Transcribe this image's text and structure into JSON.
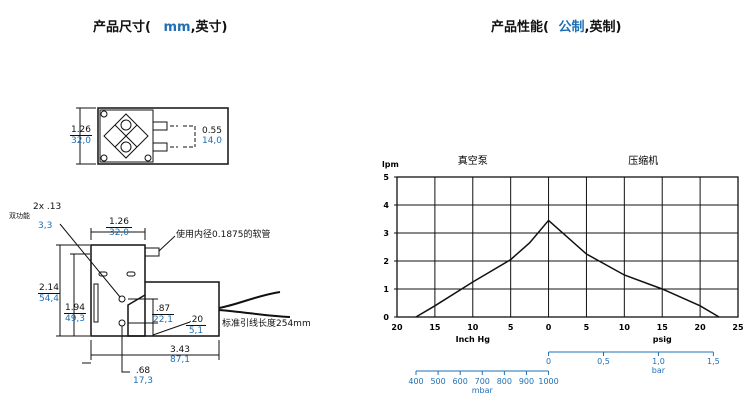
{
  "dimensions": {
    "title_prefix": "产品尺寸(",
    "title_mm": "mm",
    "title_suffix": ",英寸)",
    "top_view": {
      "height": {
        "in": "1.26",
        "mm": "32,0"
      },
      "port_spacing": {
        "in": "0.55",
        "mm": "14,0"
      }
    },
    "front_view": {
      "mount_label": "双功能",
      "holes": {
        "in": "2x .13",
        "mm": "3,3"
      },
      "width_top": {
        "in": "1.26",
        "mm": "32,0"
      },
      "tubing_note": "使用内径0.1875的软管",
      "height_total": {
        "in": "2.14",
        "mm": "54,4"
      },
      "height_body": {
        "in": "1.94",
        "mm": "49,3"
      },
      "hole_spacing": {
        "in": ".87",
        "mm": "22,1"
      },
      "hole_offset": {
        "in": ".20",
        "mm": "5,1"
      },
      "lead_note": "标准引线长度254mm",
      "length": {
        "in": "3.43",
        "mm": "87,1"
      },
      "hole_x": {
        "in": ".68",
        "mm": "17,3"
      }
    }
  },
  "performance": {
    "title_prefix": "产品性能(",
    "title_metric": "公制",
    "title_suffix": ",英制)"
  },
  "chart_data": {
    "type": "line",
    "ylabel": "lpm",
    "region_labels": [
      "真空泵",
      "压缩机"
    ],
    "xlabel_left": "Inch Hg",
    "xlabel_right": "psig",
    "x_ticks": [
      -20,
      -15,
      -10,
      -5,
      0,
      5,
      10,
      15,
      20,
      25
    ],
    "x_tick_labels": [
      "20",
      "15",
      "10",
      "5",
      "0",
      "5",
      "10",
      "15",
      "20",
      "25"
    ],
    "y_ticks": [
      0,
      1,
      2,
      3,
      4,
      5
    ],
    "y_tick_labels": [
      "0",
      "1",
      "2",
      "3",
      "4",
      "5"
    ],
    "xlim": [
      -20,
      25
    ],
    "ylim": [
      0,
      5
    ],
    "grid": true,
    "series": [
      {
        "x": [
          -17.5,
          -15,
          -10,
          -5,
          -2.5,
          0,
          5,
          10,
          15,
          20,
          22.5
        ],
        "y": [
          0,
          0.4,
          1.25,
          2.05,
          2.65,
          3.45,
          2.25,
          1.5,
          1.0,
          0.4,
          0
        ]
      }
    ],
    "secondary_axes": [
      {
        "label": "bar",
        "ticks": [
          "0",
          "0,5",
          "1,0",
          "1,5"
        ],
        "values": [
          0,
          0.5,
          1.0,
          1.5
        ],
        "psig_equiv": [
          0,
          7.25,
          14.5,
          21.75
        ]
      },
      {
        "label": "mbar",
        "ticks": [
          "400",
          "500",
          "600",
          "700",
          "800",
          "900",
          "1000"
        ],
        "values": [
          400,
          500,
          600,
          700,
          800,
          900,
          1000
        ]
      }
    ],
    "accent_color": "#1f6fb5"
  }
}
